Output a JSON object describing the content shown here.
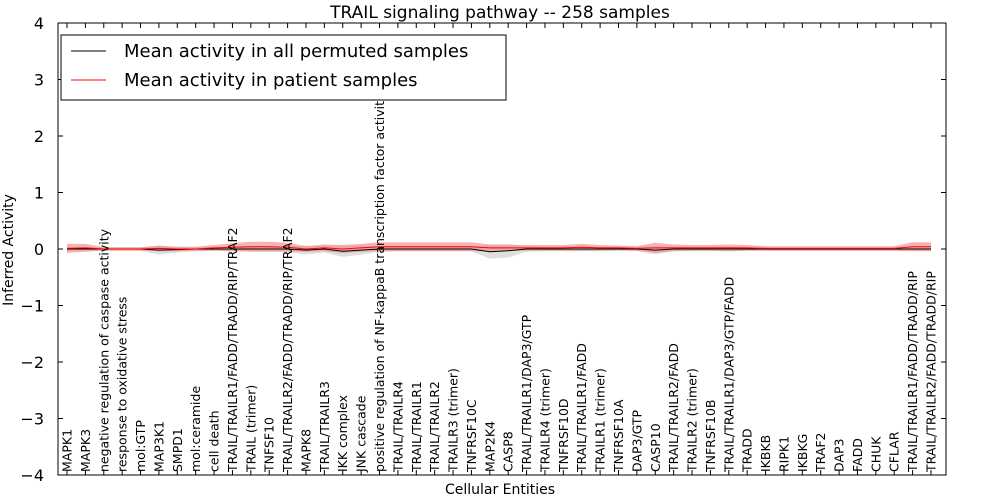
{
  "chart_data": {
    "type": "line",
    "title": "TRAIL signaling pathway -- 258 samples",
    "xlabel": "Cellular Entities",
    "ylabel": "Inferred Activity",
    "ylim": [
      -4,
      4
    ],
    "yticks": [
      4,
      3,
      2,
      1,
      0,
      -1,
      -2,
      -3,
      -4
    ],
    "ytick_labels": [
      "4",
      "3",
      "2",
      "1",
      "0",
      "−1",
      "−2",
      "−3",
      "−4"
    ],
    "legend": {
      "position": "top-left"
    },
    "categories": [
      "MAPK1",
      "MAPK3",
      "negative regulation of caspase activity",
      "response to oxidative stress",
      "mol:GTP",
      "MAP3K1",
      "SMPD1",
      "mol:ceramide",
      "cell death",
      "TRAIL/TRAILR1/FADD/TRADD/RIP/TRAF2",
      "TRAIL (trimer)",
      "TNFSF10",
      "TRAIL/TRAILR2/FADD/TRADD/RIP/TRAF2",
      "MAPK8",
      "TRAIL/TRAILR3",
      "IKK complex",
      "JNK cascade",
      "positive regulation of NF-kappaB transcription factor activity",
      "TRAIL/TRAILR4",
      "TRAIL/TRAILR1",
      "TRAIL/TRAILR2",
      "TRAILR3 (trimer)",
      "TNFRSF10C",
      "MAP2K4",
      "CASP8",
      "TRAIL/TRAILR1/DAP3/GTP",
      "TRAILR4 (trimer)",
      "TNFRSF10D",
      "TRAIL/TRAILR1/FADD",
      "TRAILR1 (trimer)",
      "TNFRSF10A",
      "DAP3/GTP",
      "CASP10",
      "TRAIL/TRAILR2/FADD",
      "TRAILR2 (trimer)",
      "TNFRSF10B",
      "TRAIL/TRAILR1/DAP3/GTP/FADD",
      "TRADD",
      "IKBKB",
      "RIPK1",
      "IKBKG",
      "TRAF2",
      "DAP3",
      "FADD",
      "CHUK",
      "CFLAR",
      "TRAIL/TRAILR1/FADD/TRADD/RIP",
      "TRAIL/TRAILR2/FADD/TRADD/RIP"
    ],
    "series": [
      {
        "name": "Mean activity in all permuted samples",
        "color": "#000000",
        "band_color": "#c0c0c0",
        "values": [
          0,
          0,
          0,
          0,
          0,
          -0.02,
          -0.01,
          0,
          0,
          0,
          0,
          0,
          0,
          -0.02,
          0,
          -0.04,
          -0.02,
          0,
          0,
          0,
          0,
          0,
          0,
          -0.05,
          -0.03,
          0,
          0,
          0,
          0,
          0,
          0,
          0,
          -0.02,
          0,
          0,
          0,
          0,
          0,
          0,
          0,
          0,
          0,
          0,
          0,
          0,
          0,
          0,
          0
        ],
        "spread": [
          0.03,
          0.03,
          0.03,
          0.03,
          0.03,
          0.08,
          0.05,
          0.03,
          0.03,
          0.04,
          0.04,
          0.04,
          0.05,
          0.08,
          0.06,
          0.1,
          0.08,
          0.05,
          0.04,
          0.04,
          0.04,
          0.04,
          0.04,
          0.12,
          0.12,
          0.05,
          0.04,
          0.04,
          0.04,
          0.04,
          0.04,
          0.04,
          0.07,
          0.04,
          0.04,
          0.04,
          0.04,
          0.03,
          0.03,
          0.03,
          0.03,
          0.03,
          0.03,
          0.03,
          0.03,
          0.03,
          0.03,
          0.03
        ]
      },
      {
        "name": "Mean activity in patient samples",
        "color": "#ff0000",
        "band_color": "#f08080",
        "values": [
          0.01,
          0.02,
          0,
          0,
          0,
          0.01,
          0,
          0,
          0.02,
          0.03,
          0.04,
          0.04,
          0.03,
          0,
          0.02,
          0,
          0.02,
          0.04,
          0.04,
          0.04,
          0.04,
          0.04,
          0.04,
          0.02,
          0.02,
          0.02,
          0.02,
          0.02,
          0.03,
          0.02,
          0.02,
          0.01,
          0.02,
          0.02,
          0.02,
          0.02,
          0.02,
          0.02,
          0.01,
          0.01,
          0.01,
          0.01,
          0.01,
          0.01,
          0.01,
          0.01,
          0.04,
          0.04
        ],
        "spread": [
          0.08,
          0.07,
          0.03,
          0.03,
          0.03,
          0.05,
          0.04,
          0.04,
          0.05,
          0.07,
          0.09,
          0.09,
          0.08,
          0.05,
          0.06,
          0.07,
          0.07,
          0.08,
          0.08,
          0.08,
          0.08,
          0.08,
          0.08,
          0.06,
          0.05,
          0.05,
          0.05,
          0.05,
          0.06,
          0.05,
          0.04,
          0.04,
          0.09,
          0.06,
          0.05,
          0.05,
          0.06,
          0.05,
          0.04,
          0.04,
          0.04,
          0.04,
          0.04,
          0.04,
          0.04,
          0.04,
          0.08,
          0.08
        ]
      }
    ]
  }
}
